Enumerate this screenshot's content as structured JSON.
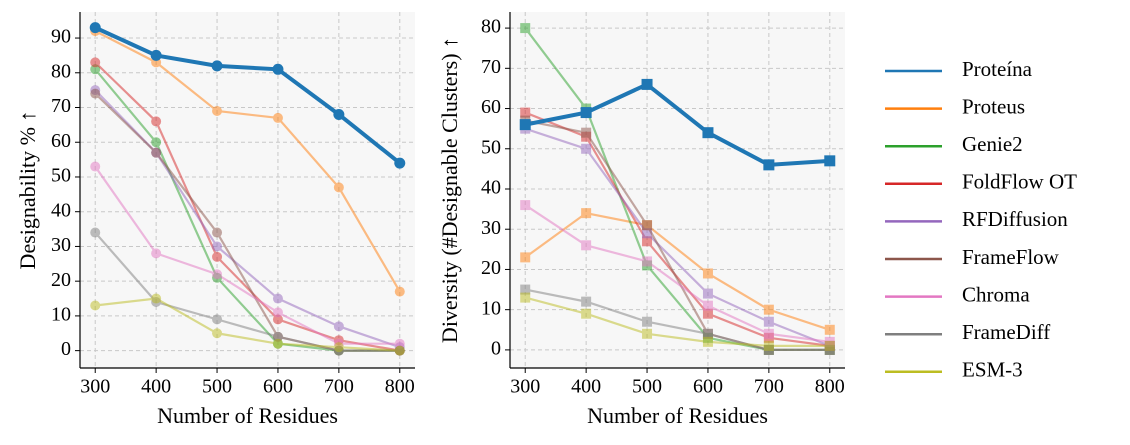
{
  "chart_data": [
    {
      "type": "line",
      "marker": "circle",
      "x_label": "Number of Residues",
      "y_label": "Designability % ↑",
      "x": [
        300,
        400,
        500,
        600,
        700,
        800
      ],
      "xlim": [
        275,
        825
      ],
      "xticks": [
        300,
        400,
        500,
        600,
        700,
        800
      ],
      "ylim": [
        -5,
        97.5
      ],
      "yticks": [
        0,
        10,
        20,
        30,
        40,
        50,
        60,
        70,
        80,
        90
      ],
      "grid": true,
      "series": [
        {
          "name": "Proteína",
          "color": "#1f77b4",
          "values": [
            93,
            85,
            82,
            81,
            68,
            54
          ]
        },
        {
          "name": "Proteus",
          "color": "#ff7f0e",
          "values": [
            92,
            83,
            69,
            67,
            47,
            17
          ]
        },
        {
          "name": "Genie2",
          "color": "#2ca02c",
          "values": [
            81,
            60,
            21,
            2,
            0,
            0
          ]
        },
        {
          "name": "FoldFlow OT",
          "color": "#d62728",
          "values": [
            83,
            66,
            27,
            9,
            3,
            0
          ]
        },
        {
          "name": "RFDiffusion",
          "color": "#9467bd",
          "values": [
            75,
            57,
            30,
            15,
            7,
            1
          ]
        },
        {
          "name": "FrameFlow",
          "color": "#8c564b",
          "values": [
            74,
            57,
            34,
            4,
            0,
            0
          ]
        },
        {
          "name": "Chroma",
          "color": "#e377c2",
          "values": [
            53,
            28,
            22,
            11,
            2,
            2
          ]
        },
        {
          "name": "FrameDiff",
          "color": "#7f7f7f",
          "values": [
            34,
            14,
            9,
            4,
            0,
            0
          ]
        },
        {
          "name": "ESM-3",
          "color": "#bcbd22",
          "values": [
            13,
            15,
            5,
            2,
            1,
            0
          ]
        }
      ]
    },
    {
      "type": "line",
      "marker": "square",
      "x_label": "Number of Residues",
      "y_label": "Diversity (#Designable Clusters) ↑",
      "x": [
        300,
        400,
        500,
        600,
        700,
        800
      ],
      "xlim": [
        275,
        825
      ],
      "xticks": [
        300,
        400,
        500,
        600,
        700,
        800
      ],
      "ylim": [
        -4.5,
        84
      ],
      "yticks": [
        0,
        10,
        20,
        30,
        40,
        50,
        60,
        70,
        80
      ],
      "grid": true,
      "series": [
        {
          "color": "#1f77b4",
          "values": [
            56,
            59,
            66,
            54,
            46,
            47
          ]
        },
        {
          "color": "#ff7f0e",
          "values": [
            23,
            34,
            31,
            19,
            10,
            5
          ]
        },
        {
          "color": "#2ca02c",
          "values": [
            80,
            60,
            21,
            3,
            0,
            0
          ]
        },
        {
          "color": "#d62728",
          "values": [
            59,
            53,
            27,
            9,
            3,
            1
          ]
        },
        {
          "color": "#9467bd",
          "values": [
            55,
            50,
            29,
            14,
            7,
            1
          ]
        },
        {
          "color": "#8c564b",
          "values": [
            57,
            54,
            31,
            4,
            0,
            0
          ]
        },
        {
          "color": "#e377c2",
          "values": [
            36,
            26,
            22,
            11,
            4,
            2
          ]
        },
        {
          "color": "#7f7f7f",
          "values": [
            15,
            12,
            7,
            4,
            0,
            0
          ]
        },
        {
          "color": "#bcbd22",
          "values": [
            13,
            9,
            4,
            2,
            1,
            1
          ]
        }
      ]
    }
  ]
}
